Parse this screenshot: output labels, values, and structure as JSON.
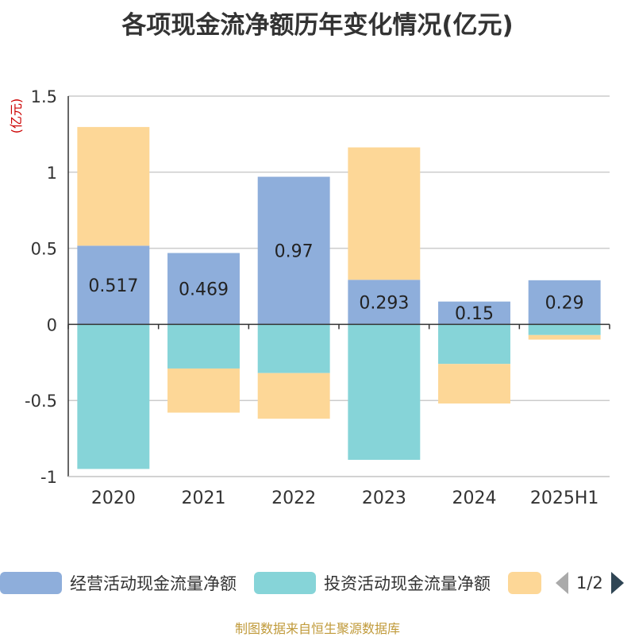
{
  "title": "各项现金流净额历年变化情况(亿元)",
  "source": "制图数据来自恒生聚源数据库",
  "legend": {
    "page": "1/2"
  },
  "colors": {
    "operating": "#8eaedb",
    "investing": "#86d4d8",
    "financing": "#fdd797",
    "unit_label": "#cc0000"
  },
  "chart_data": {
    "type": "bar",
    "stacked": true,
    "categories": [
      "2020",
      "2021",
      "2022",
      "2023",
      "2024",
      "2025H1"
    ],
    "series": [
      {
        "name": "经营活动现金流量净额",
        "values": [
          0.517,
          0.469,
          0.97,
          0.293,
          0.15,
          0.29
        ],
        "labels": [
          "0.517",
          "0.469",
          "0.97",
          "0.293",
          "0.15",
          "0.29"
        ]
      },
      {
        "name": "投资活动现金流量净额",
        "values": [
          -0.95,
          -0.29,
          -0.32,
          -0.89,
          -0.26,
          -0.07
        ]
      },
      {
        "name": "",
        "values": [
          0.78,
          -0.29,
          -0.3,
          0.87,
          -0.26,
          -0.03
        ]
      }
    ],
    "ylabel": "(亿元)",
    "ylim": [
      -1,
      1.5
    ],
    "yticks": [
      -1,
      -0.5,
      0,
      0.5,
      1,
      1.5
    ],
    "ytick_labels": [
      "-1",
      "-0.5",
      "0",
      "0.5",
      "1",
      "1.5"
    ],
    "grid": true,
    "legend_position": "bottom"
  }
}
